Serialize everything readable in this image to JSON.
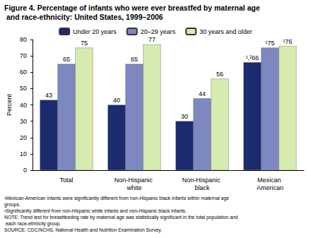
{
  "chart_data": {
    "type": "bar",
    "title": "Figure 4. Percentage of infants who were ever breastfed by maternal age and race-ethnicity: United States, 1999–2006",
    "y_label": "Percent",
    "categories": [
      "Total",
      "Non-Hispanic white",
      "Non-Hispanic black",
      "Mexican American"
    ],
    "series": [
      {
        "name": "Under 20 years",
        "color": "#1c2a6e",
        "values": [
          43,
          40,
          30,
          66
        ],
        "value_labels": [
          "43",
          "40",
          "30",
          "¹,²66"
        ]
      },
      {
        "name": "20–29 years",
        "color": "#7d88c0",
        "values": [
          65,
          65,
          44,
          75
        ],
        "value_labels": [
          "65",
          "65",
          "44",
          "¹75"
        ]
      },
      {
        "name": "30 years and older",
        "color": "#d5ebb0",
        "values": [
          75,
          77,
          56,
          76
        ],
        "value_labels": [
          "75",
          "77",
          "56",
          "¹76"
        ]
      }
    ],
    "ylim": [
      0,
      80
    ],
    "yticks": [
      0,
      10,
      20,
      30,
      40,
      50,
      60,
      70,
      80
    ],
    "grid": false,
    "legend": "top",
    "data_labels": true,
    "notes": [
      "¹Mexican-American infants were significantly different from non-Hispanic black infants within maternal age groups.",
      "²Significantly different from non-Hispanic white infants and non-Hispanic black infants.",
      "NOTE: Trend test for breastfeeding rate by maternal age was statistically significant in the total population and each race-ethnicity group.",
      "SOURCE: CDC/NCHS, National Health and Nutrition Examination Survey."
    ]
  }
}
